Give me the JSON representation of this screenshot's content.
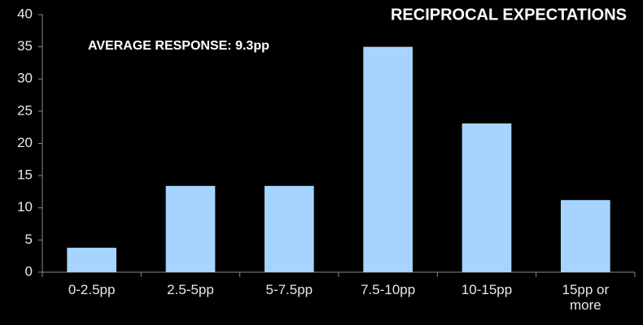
{
  "chart_data": {
    "type": "bar",
    "title": "RECIPROCAL EXPECTATIONS",
    "annotation": "AVERAGE RESPONSE: 9.3pp",
    "categories": [
      "0-2.5pp",
      "2.5-5pp",
      "5-7.5pp",
      "7.5-10pp",
      "10-15pp",
      "15pp or more"
    ],
    "values": [
      3.8,
      13.4,
      13.4,
      35,
      23.1,
      11.2
    ],
    "color": "#a6d4ff",
    "ylim": [
      0,
      40
    ],
    "yticks": [
      0,
      5,
      10,
      15,
      20,
      25,
      30,
      35,
      40
    ],
    "grid": false
  }
}
